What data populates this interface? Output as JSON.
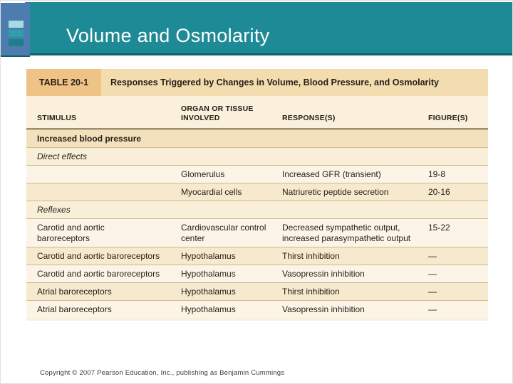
{
  "slide": {
    "title": "Volume and Osmolarity",
    "copyright": "Copyright © 2007 Pearson Education, Inc., publishing as Benjamin Cummings"
  },
  "table": {
    "label": "TABLE 20-1",
    "title": "Responses Triggered by Changes in Volume, Blood Pressure, and Osmolarity",
    "columns": [
      "STIMULUS",
      "ORGAN OR TISSUE INVOLVED",
      "RESPONSE(S)",
      "FIGURE(S)"
    ],
    "rows": [
      {
        "kind": "section",
        "shade": "dark",
        "cells": [
          "Increased blood pressure",
          "",
          "",
          ""
        ]
      },
      {
        "kind": "subsection",
        "shade": "base",
        "cells": [
          "Direct effects",
          "",
          "",
          ""
        ]
      },
      {
        "kind": "data",
        "shade": "light",
        "cells": [
          "",
          "Glomerulus",
          "Increased GFR (transient)",
          "19-8"
        ]
      },
      {
        "kind": "data",
        "shade": "mid",
        "cells": [
          "",
          "Myocardial cells",
          "Natriuretic peptide secretion",
          "20-16"
        ]
      },
      {
        "kind": "subsection",
        "shade": "base",
        "cells": [
          "Reflexes",
          "",
          "",
          ""
        ]
      },
      {
        "kind": "data",
        "shade": "light",
        "cells": [
          [
            "Carotid and aortic",
            "baroreceptors"
          ],
          [
            "Cardiovascular control",
            "center"
          ],
          [
            "Decreased sympathetic output,",
            "increased parasympathetic output"
          ],
          "15-22"
        ]
      },
      {
        "kind": "data",
        "shade": "mid",
        "cells": [
          "Carotid and aortic baroreceptors",
          "Hypothalamus",
          "Thirst inhibition",
          "—"
        ]
      },
      {
        "kind": "data",
        "shade": "light",
        "cells": [
          "Carotid and aortic baroreceptors",
          "Hypothalamus",
          "Vasopressin inhibition",
          "—"
        ]
      },
      {
        "kind": "data",
        "shade": "mid",
        "cells": [
          "Atrial baroreceptors",
          "Hypothalamus",
          "Thirst inhibition",
          "—"
        ]
      },
      {
        "kind": "data",
        "shade": "light",
        "cells": [
          "Atrial baroreceptors",
          "Hypothalamus",
          "Vasopressin inhibition",
          "—"
        ]
      }
    ]
  },
  "colors": {
    "band_teal": "#1e8a96",
    "band_edge_dark_teal": "#0d6067",
    "logo_blue": "#4d7cae",
    "logo_bar_light": "#a5dbe4",
    "logo_bar_mid": "#2aa1ab",
    "logo_bar_dark": "#1e7f8a",
    "table_cream": "#faf0dc",
    "table_titlebar_tan": "#f3dcb0",
    "table_label_orange": "#efc286",
    "row_dark_tan": "#f3e0bd",
    "divider": "#cdb992",
    "text_dark": "#241e15",
    "title_text": "#ffffff"
  }
}
